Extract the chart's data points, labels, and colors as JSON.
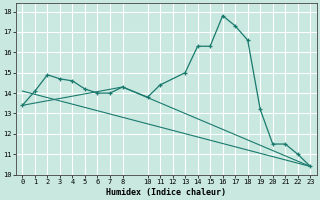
{
  "xlabel": "Humidex (Indice chaleur)",
  "bg_color": "#c8e8e0",
  "grid_color": "#ffffff",
  "line_color": "#1a7a6e",
  "xlim": [
    -0.5,
    23.5
  ],
  "ylim": [
    10,
    18.4
  ],
  "xticks": [
    0,
    1,
    2,
    3,
    4,
    5,
    6,
    7,
    8,
    10,
    11,
    12,
    13,
    14,
    15,
    16,
    17,
    18,
    19,
    20,
    21,
    22,
    23
  ],
  "yticks": [
    10,
    11,
    12,
    13,
    14,
    15,
    16,
    17,
    18
  ],
  "line1_x": [
    0,
    1,
    2,
    3,
    4,
    5,
    6,
    7,
    8,
    10,
    11,
    13,
    14,
    15,
    16,
    17,
    18,
    19,
    20,
    21,
    22,
    23
  ],
  "line1_y": [
    13.4,
    14.1,
    14.9,
    14.7,
    14.6,
    14.2,
    14.0,
    14.0,
    14.3,
    13.8,
    14.4,
    15.0,
    16.3,
    16.3,
    17.8,
    17.3,
    16.6,
    13.2,
    11.5,
    11.5,
    11.0,
    10.4
  ],
  "line2_x": [
    0,
    8,
    23
  ],
  "line2_y": [
    13.4,
    14.3,
    10.4
  ],
  "line3_x": [
    0,
    23
  ],
  "line3_y": [
    14.1,
    10.4
  ],
  "tick_fontsize": 5.0,
  "xlabel_fontsize": 6.0,
  "xlabel_fontweight": "bold"
}
